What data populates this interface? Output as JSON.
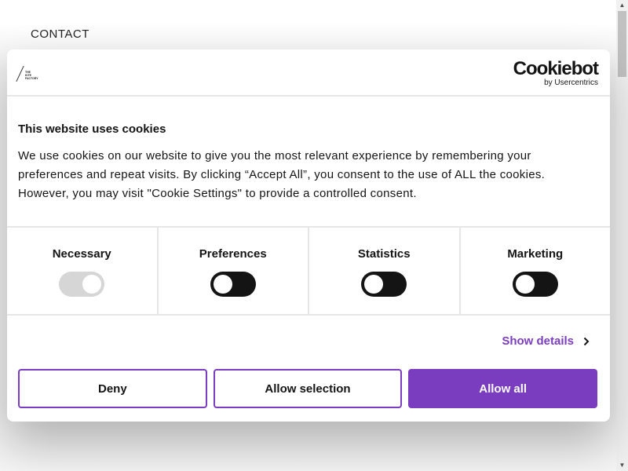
{
  "page": {
    "nav_contact": "CONTACT"
  },
  "dialog": {
    "brand_logo_text": "THE KITE FACTORY",
    "cookiebot": {
      "name": "Cookiebot",
      "sub": "by Usercentrics"
    },
    "title": "This website uses cookies",
    "text": "We use cookies on our website to give you the most relevant experience by remembering your preferences and repeat visits. By clicking “Accept All”, you consent to the use of ALL the cookies. However, you may visit \"Cookie Settings\" to provide a controlled consent.",
    "categories": [
      {
        "label": "Necessary",
        "enabled": true,
        "disabled": true
      },
      {
        "label": "Preferences",
        "enabled": false
      },
      {
        "label": "Statistics",
        "enabled": false
      },
      {
        "label": "Marketing",
        "enabled": false
      }
    ],
    "show_details": "Show details",
    "buttons": {
      "deny": "Deny",
      "allow_selection": "Allow selection",
      "allow_all": "Allow all"
    },
    "accent_color": "#7b3dbf"
  }
}
